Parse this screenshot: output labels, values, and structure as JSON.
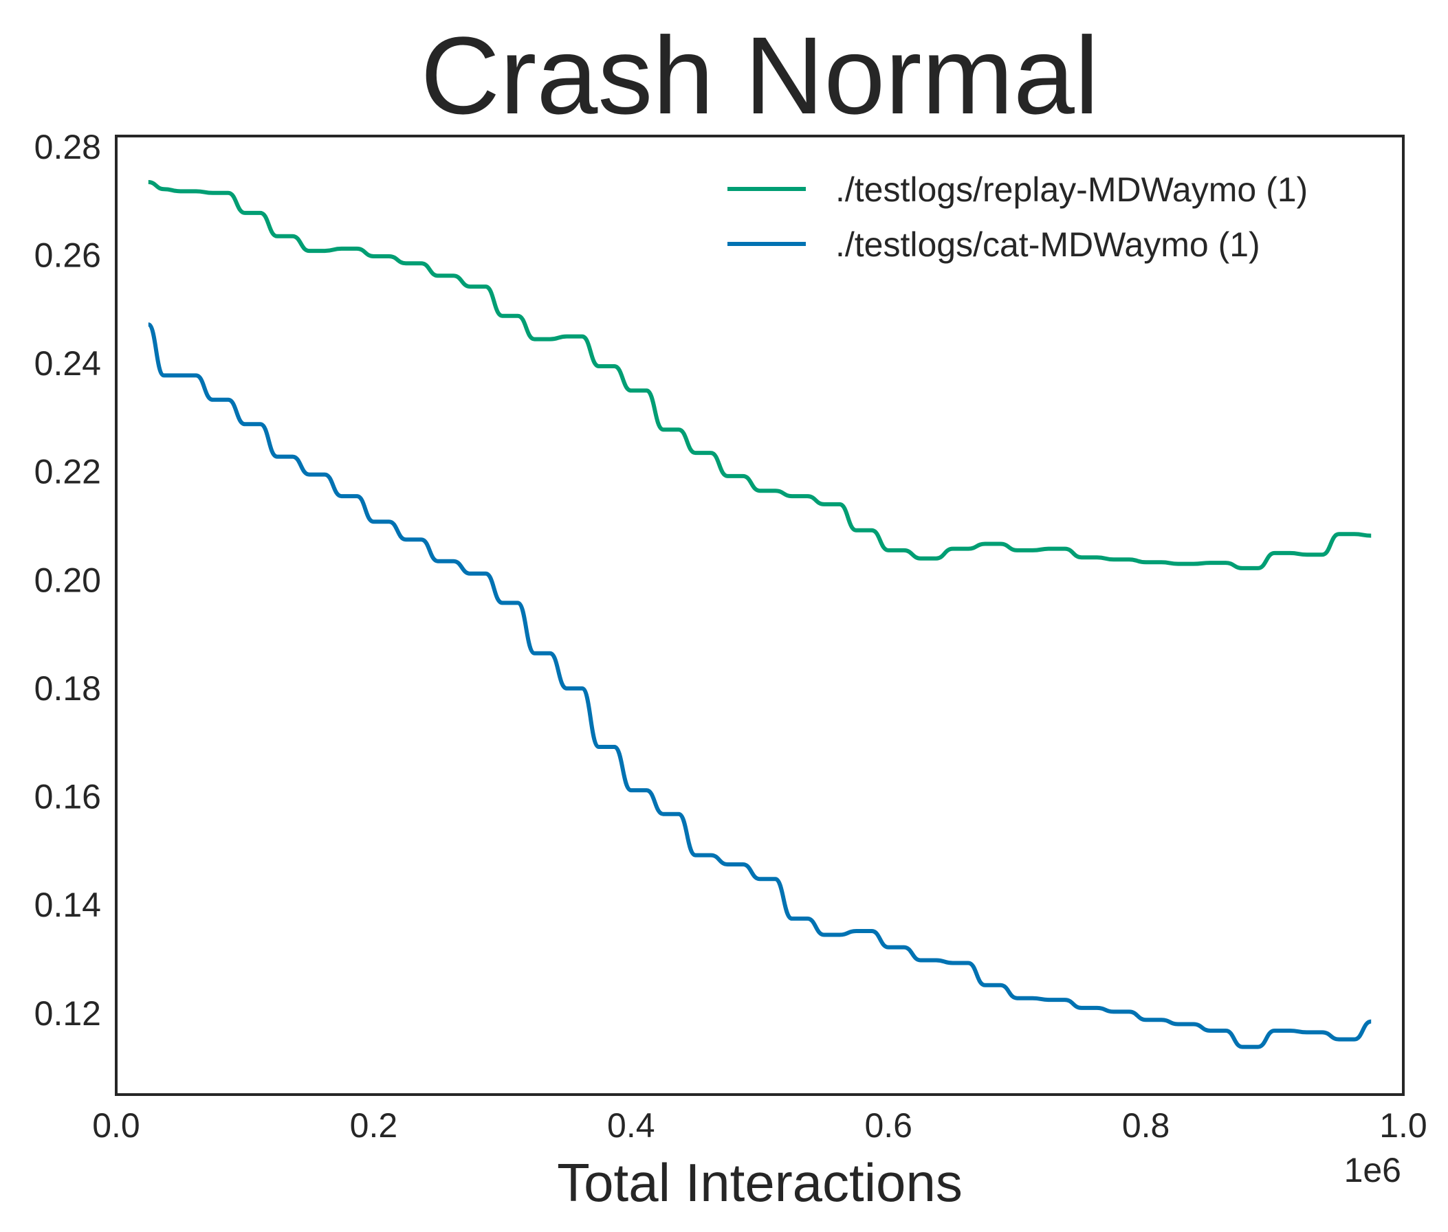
{
  "chart_data": {
    "type": "line",
    "title": "Crash Normal",
    "xlabel": "Total Interactions",
    "ylabel": "",
    "x_offset_label": "1e6",
    "xlim": [
      0.0,
      1.0
    ],
    "ylim": [
      0.105,
      0.282
    ],
    "x_ticks": [
      0.0,
      0.2,
      0.4,
      0.6,
      0.8,
      1.0
    ],
    "x_tick_labels": [
      "0.0",
      "0.2",
      "0.4",
      "0.6",
      "0.8",
      "1.0"
    ],
    "y_ticks": [
      0.12,
      0.14,
      0.16,
      0.18,
      0.2,
      0.22,
      0.24,
      0.26,
      0.28
    ],
    "y_tick_labels": [
      "0.12",
      "0.14",
      "0.16",
      "0.18",
      "0.20",
      "0.22",
      "0.24",
      "0.26",
      "0.28"
    ],
    "grid": false,
    "legend_position": "top-right",
    "x": [
      0.025,
      0.037,
      0.05,
      0.062,
      0.075,
      0.087,
      0.1,
      0.112,
      0.125,
      0.137,
      0.15,
      0.162,
      0.175,
      0.187,
      0.2,
      0.212,
      0.225,
      0.237,
      0.25,
      0.262,
      0.275,
      0.287,
      0.3,
      0.312,
      0.325,
      0.337,
      0.35,
      0.362,
      0.375,
      0.387,
      0.4,
      0.412,
      0.425,
      0.437,
      0.45,
      0.462,
      0.475,
      0.487,
      0.5,
      0.512,
      0.525,
      0.537,
      0.55,
      0.562,
      0.575,
      0.587,
      0.6,
      0.612,
      0.625,
      0.637,
      0.65,
      0.662,
      0.675,
      0.687,
      0.7,
      0.712,
      0.725,
      0.737,
      0.75,
      0.762,
      0.775,
      0.787,
      0.8,
      0.812,
      0.825,
      0.837,
      0.85,
      0.862,
      0.875,
      0.887,
      0.9,
      0.912,
      0.925,
      0.937,
      0.95,
      0.962,
      0.975
    ],
    "series": [
      {
        "name": "./testlogs/replay-MDWaymo (1)",
        "color": "#009E73",
        "values": [
          0.2735,
          0.2722,
          0.2718,
          0.2718,
          0.2715,
          0.2715,
          0.2678,
          0.2678,
          0.2635,
          0.2635,
          0.2608,
          0.2608,
          0.2612,
          0.2612,
          0.2598,
          0.2598,
          0.2585,
          0.2585,
          0.2562,
          0.2562,
          0.2542,
          0.2542,
          0.2488,
          0.2488,
          0.2445,
          0.2445,
          0.245,
          0.245,
          0.2395,
          0.2395,
          0.235,
          0.235,
          0.2278,
          0.2278,
          0.2235,
          0.2235,
          0.2192,
          0.2192,
          0.2165,
          0.2165,
          0.2155,
          0.2155,
          0.214,
          0.214,
          0.2092,
          0.2092,
          0.2055,
          0.2055,
          0.204,
          0.204,
          0.2058,
          0.2058,
          0.2067,
          0.2067,
          0.2055,
          0.2055,
          0.2058,
          0.2058,
          0.2042,
          0.2042,
          0.2038,
          0.2038,
          0.2033,
          0.2033,
          0.203,
          0.203,
          0.2032,
          0.2032,
          0.2022,
          0.2022,
          0.205,
          0.205,
          0.2047,
          0.2047,
          0.2085,
          0.2085,
          0.2082
        ]
      },
      {
        "name": "./testlogs/cat-MDWaymo (1)",
        "color": "#0072B2",
        "values": [
          0.2472,
          0.2378,
          0.2378,
          0.2378,
          0.2333,
          0.2333,
          0.2288,
          0.2288,
          0.2228,
          0.2228,
          0.2195,
          0.2195,
          0.2155,
          0.2155,
          0.2108,
          0.2108,
          0.2075,
          0.2075,
          0.2035,
          0.2035,
          0.2012,
          0.2012,
          0.1958,
          0.1958,
          0.1865,
          0.1865,
          0.18,
          0.18,
          0.1692,
          0.1692,
          0.1612,
          0.1612,
          0.1568,
          0.1568,
          0.1492,
          0.1492,
          0.1475,
          0.1475,
          0.1448,
          0.1448,
          0.1375,
          0.1375,
          0.1345,
          0.1345,
          0.1352,
          0.1352,
          0.1322,
          0.1322,
          0.1298,
          0.1298,
          0.1293,
          0.1293,
          0.1252,
          0.1252,
          0.1228,
          0.1228,
          0.1225,
          0.1225,
          0.121,
          0.121,
          0.1203,
          0.1203,
          0.1188,
          0.1188,
          0.118,
          0.118,
          0.1168,
          0.1168,
          0.1138,
          0.1138,
          0.1168,
          0.1168,
          0.1165,
          0.1165,
          0.1152,
          0.1152,
          0.1185
        ]
      }
    ]
  }
}
